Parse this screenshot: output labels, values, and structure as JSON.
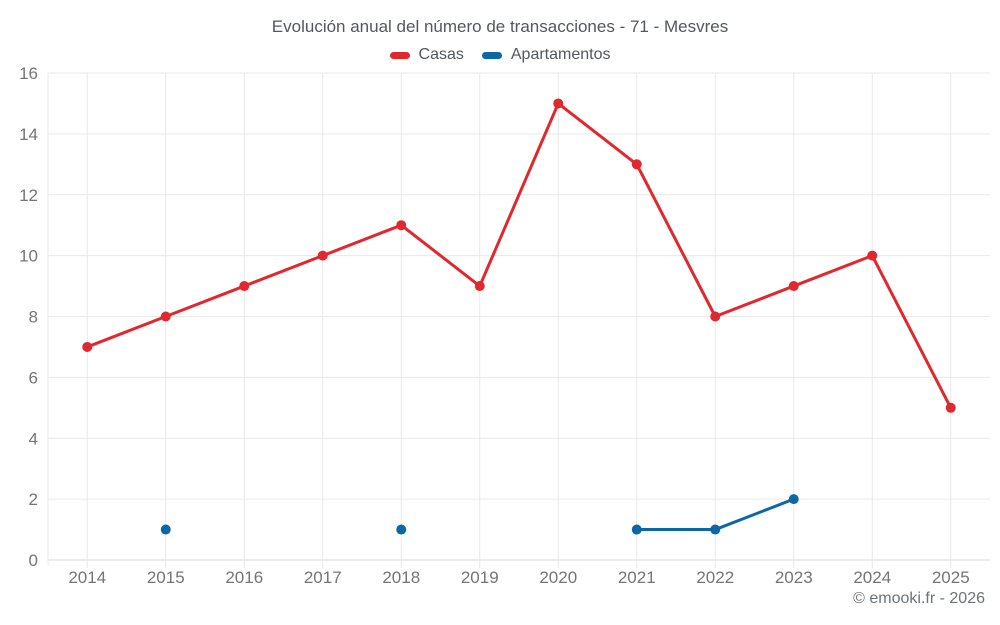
{
  "header": {
    "title": "Evolución anual del número de transacciones - 71 - Mesvres"
  },
  "chart_data": {
    "type": "line",
    "title": "Evolución anual del número de transacciones - 71 - Mesvres",
    "x": [
      2014,
      2015,
      2016,
      2017,
      2018,
      2019,
      2020,
      2021,
      2022,
      2023,
      2024,
      2025
    ],
    "series": [
      {
        "name": "Casas",
        "color": "#e0282e",
        "values": [
          7,
          8,
          9,
          10,
          11,
          9,
          15,
          13,
          8,
          9,
          10,
          5
        ]
      },
      {
        "name": "Apartamentos",
        "color": "#0e67a5",
        "values": [
          null,
          1,
          null,
          null,
          1,
          null,
          null,
          1,
          1,
          2,
          null,
          null
        ]
      }
    ],
    "xlabel": "",
    "ylabel": "",
    "ylim": [
      0,
      16
    ],
    "yticks": [
      0,
      2,
      4,
      6,
      8,
      10,
      12,
      14,
      16
    ],
    "grid": true,
    "legend_position": "top"
  },
  "footer": {
    "credit": "© emooki.fr - 2026"
  },
  "colors": {
    "grid_line": "#e9e9e9",
    "axis_base_line": "#d9d9d9",
    "axis_label_text": "#757575"
  }
}
